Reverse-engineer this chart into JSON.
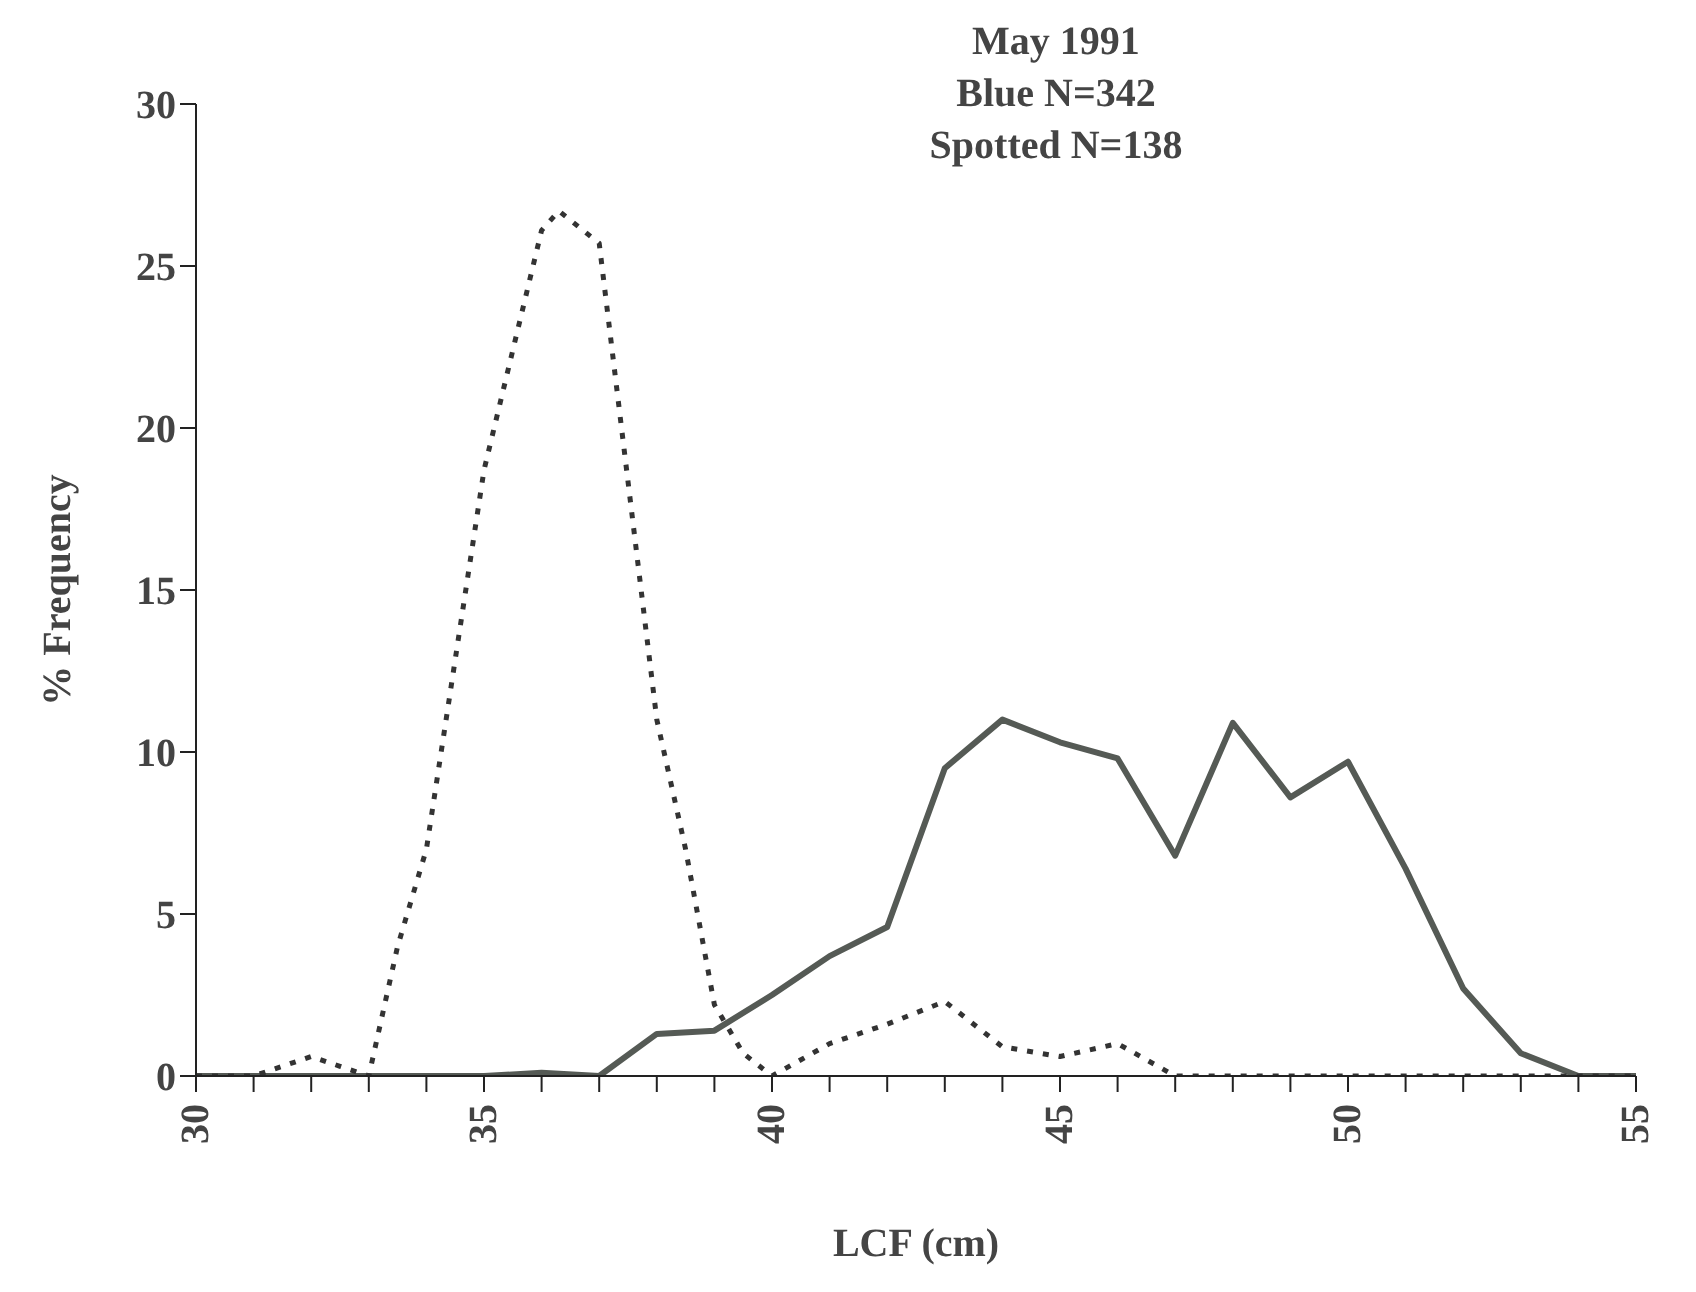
{
  "chart_data": {
    "type": "line",
    "title": "May 1991",
    "annotations": [
      "Blue N=342",
      "Spotted N=138"
    ],
    "xlabel": "LCF (cm)",
    "ylabel": "% Frequency",
    "xlim": [
      30,
      55
    ],
    "xticks": [
      30,
      {
        "value": 31,
        "label": null
      },
      {
        "value": 32,
        "label": null
      },
      {
        "value": 33,
        "label": null
      },
      {
        "value": 34,
        "label": null
      },
      35,
      {
        "value": 36,
        "label": null
      },
      {
        "value": 37,
        "label": null
      },
      {
        "value": 38,
        "label": null
      },
      {
        "value": 39,
        "label": null
      },
      40,
      {
        "value": 41,
        "label": null
      },
      {
        "value": 42,
        "label": null
      },
      {
        "value": 43,
        "label": null
      },
      {
        "value": 44,
        "label": null
      },
      45,
      {
        "value": 46,
        "label": null
      },
      {
        "value": 47,
        "label": null
      },
      {
        "value": 48,
        "label": null
      },
      {
        "value": 49,
        "label": null
      },
      50,
      {
        "value": 51,
        "label": null
      },
      {
        "value": 52,
        "label": null
      },
      {
        "value": 53,
        "label": null
      },
      {
        "value": 54,
        "label": null
      },
      55
    ],
    "ylim": [
      0,
      30
    ],
    "yticks": [
      0,
      5,
      10,
      15,
      20,
      25,
      30
    ],
    "grid": false,
    "legend": false,
    "marker": "none",
    "series": [
      {
        "color": "#555a55",
        "line_style": "solid",
        "x": [
          30,
          31,
          32,
          33,
          34,
          35,
          36,
          37,
          38,
          39,
          40,
          41,
          42,
          43,
          44,
          45,
          46,
          47,
          48,
          49,
          50,
          51,
          52,
          53,
          54,
          55
        ],
        "values": [
          0,
          0,
          0,
          0,
          0,
          0,
          0.1,
          0,
          1.3,
          1.4,
          2.5,
          3.7,
          4.6,
          9.5,
          11,
          10.3,
          9.8,
          6.8,
          10.9,
          8.6,
          9.7,
          6.4,
          2.7,
          0.7,
          0,
          0
        ]
      },
      {
        "color": "#333333",
        "line_style": "dotted",
        "x": [
          30,
          31,
          31.5,
          32,
          32.5,
          33,
          33.5,
          34,
          35,
          36,
          36.3,
          37,
          38,
          38.5,
          39,
          39.5,
          40,
          41,
          42,
          43,
          44,
          45,
          46,
          47,
          48,
          49,
          50,
          51,
          52,
          53,
          54,
          55
        ],
        "values": [
          0,
          0,
          0.3,
          0.6,
          0.3,
          0,
          4,
          7,
          18.7,
          26.1,
          26.7,
          25.7,
          11,
          7,
          2.2,
          0.7,
          0,
          1,
          1.6,
          2.3,
          0.9,
          0.6,
          1,
          0,
          0,
          0,
          0,
          0,
          0,
          0,
          0,
          0
        ]
      }
    ]
  }
}
